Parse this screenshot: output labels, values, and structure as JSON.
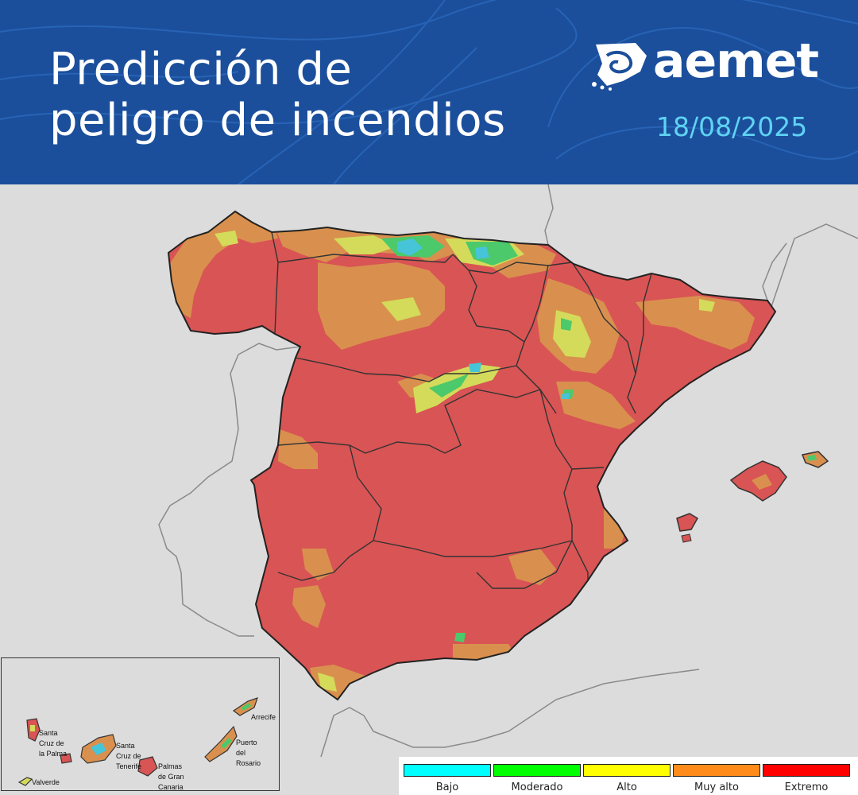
{
  "header": {
    "title_line1": "Predicción de",
    "title_line2": "peligro de incendios",
    "logo_text": "aemet",
    "date": "18/08/2025",
    "background_color": "#1b4f9c",
    "date_color": "#5fd3f3"
  },
  "map": {
    "region": "Península Ibérica y Baleares",
    "dominant_level": "Extremo"
  },
  "inset": {
    "labels": [
      {
        "id": "santa-cruz-la-palma",
        "text": "Santa\nCruz de\nla Palma"
      },
      {
        "id": "santa-cruz-tenerife",
        "text": "Santa\nCruz de\nTenerife"
      },
      {
        "id": "palmas-gran-canaria",
        "text": "Palmas\nde Gran\nCanaria"
      },
      {
        "id": "arrecife",
        "text": "Arrecife"
      },
      {
        "id": "puerto-rosario",
        "text": "Puerto\ndel\nRosario"
      },
      {
        "id": "valverde",
        "text": "Valverde"
      }
    ]
  },
  "legend": {
    "items": [
      {
        "label": "Bajo",
        "color": "#00ffff"
      },
      {
        "label": "Moderado",
        "color": "#00ff00"
      },
      {
        "label": "Alto",
        "color": "#ffff00"
      },
      {
        "label": "Muy alto",
        "color": "#ff8c1a"
      },
      {
        "label": "Extremo",
        "color": "#ff0000"
      }
    ]
  },
  "colors": {
    "extreme_fill": "#d95454",
    "very_high_fill": "#d9904e",
    "high_fill": "#d4db5a",
    "moderate_fill": "#4cc96a",
    "low_fill": "#46c4d8",
    "land_background": "#dcdcdc"
  }
}
